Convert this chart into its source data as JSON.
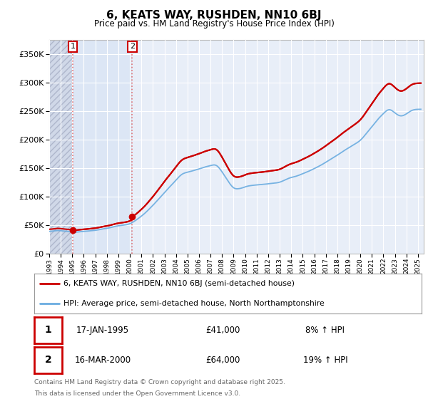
{
  "title": "6, KEATS WAY, RUSHDEN, NN10 6BJ",
  "subtitle": "Price paid vs. HM Land Registry's House Price Index (HPI)",
  "ylim": [
    0,
    375000
  ],
  "yticks": [
    0,
    50000,
    100000,
    150000,
    200000,
    250000,
    300000,
    350000
  ],
  "ytick_labels": [
    "£0",
    "£50K",
    "£100K",
    "£150K",
    "£200K",
    "£250K",
    "£300K",
    "£350K"
  ],
  "background_color": "#ffffff",
  "plot_bg_color": "#e8eef8",
  "hatch_bg_color": "#d0d8e8",
  "grid_color": "#ffffff",
  "sale1_year": 1995.04,
  "sale1_price": 41000,
  "sale1_premium": 1.08,
  "sale2_year": 2000.21,
  "sale2_price": 64000,
  "sale2_premium": 1.19,
  "legend_line1": "6, KEATS WAY, RUSHDEN, NN10 6BJ (semi-detached house)",
  "legend_line2": "HPI: Average price, semi-detached house, North Northamptonshire",
  "footer_line1": "Contains HM Land Registry data © Crown copyright and database right 2025.",
  "footer_line2": "This data is licensed under the Open Government Licence v3.0.",
  "sale_marker_color": "#cc0000",
  "hpi_line_color": "#6aace0",
  "price_line_color": "#cc0000",
  "vline_color": "#dd5555",
  "annotation_box_color": "#cc0000",
  "xmin": 1993.0,
  "xmax": 2025.5,
  "table_row1_date": "17-JAN-1995",
  "table_row1_price": "£41,000",
  "table_row1_pct": "8% ↑ HPI",
  "table_row2_date": "16-MAR-2000",
  "table_row2_price": "£64,000",
  "table_row2_pct": "19% ↑ HPI"
}
